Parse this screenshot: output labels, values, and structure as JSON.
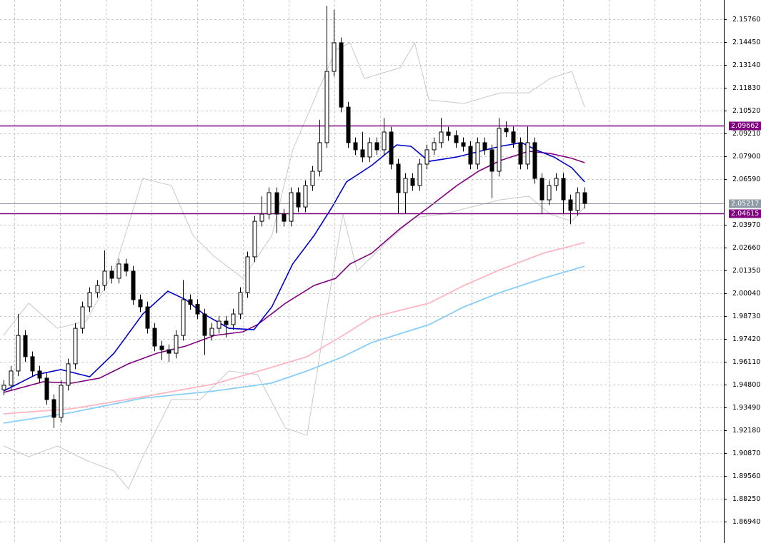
{
  "chart_data": {
    "type": "candlestick",
    "ylim": [
      1.85711,
      2.16865
    ],
    "yticks": [
      {
        "value": 2.1576,
        "label": "2.15760"
      },
      {
        "value": 2.1445,
        "label": "2.14450"
      },
      {
        "value": 2.1314,
        "label": "2.13140"
      },
      {
        "value": 2.1183,
        "label": "2.11830"
      },
      {
        "value": 2.1052,
        "label": "2.10520"
      },
      {
        "value": 2.0921,
        "label": "2.09210"
      },
      {
        "value": 2.079,
        "label": "2.07900"
      },
      {
        "value": 2.0659,
        "label": "2.06590"
      },
      {
        "value": 2.0397,
        "label": "2.03970"
      },
      {
        "value": 2.0266,
        "label": "2.02660"
      },
      {
        "value": 2.0135,
        "label": "2.01350"
      },
      {
        "value": 2.0004,
        "label": "2.00040"
      },
      {
        "value": 1.9873,
        "label": "1.98730"
      },
      {
        "value": 1.9742,
        "label": "1.97420"
      },
      {
        "value": 1.9611,
        "label": "1.96110"
      },
      {
        "value": 1.948,
        "label": "1.94800"
      },
      {
        "value": 1.9349,
        "label": "1.93490"
      },
      {
        "value": 1.9218,
        "label": "1.92180"
      },
      {
        "value": 1.9087,
        "label": "1.90870"
      },
      {
        "value": 1.8956,
        "label": "1.89560"
      },
      {
        "value": 1.8825,
        "label": "1.88250"
      },
      {
        "value": 1.8694,
        "label": "1.86940"
      }
    ],
    "grid": true,
    "up_color": "#ffffff",
    "down_color": "#000000",
    "open": [
      1.945,
      1.9476,
      1.9558,
      1.9762,
      1.964,
      1.9558,
      1.9517,
      1.9394,
      1.9292,
      1.9476,
      1.9599,
      1.9803,
      1.9926,
      2.0008,
      2.0049,
      2.0131,
      2.009,
      2.0172,
      2.0131,
      1.9967,
      1.9926,
      1.9803,
      1.9701,
      1.968,
      1.966,
      1.9762,
      1.9967,
      1.994,
      1.9885,
      1.9762,
      1.9803,
      1.9844,
      1.9824,
      1.9885,
      2.0008,
      2.0213,
      2.0417,
      2.0458,
      2.0581,
      2.0458,
      2.0417,
      2.0581,
      2.0499,
      2.0622,
      2.0704,
      2.0868,
      2.1277,
      2.1441,
      2.1072,
      2.0868,
      2.0827,
      2.0786,
      2.0868,
      2.0827,
      2.0929,
      2.0745,
      2.0581,
      2.0663,
      2.0622,
      2.0745,
      2.0827,
      2.0868,
      2.0929,
      2.0909,
      2.0868,
      2.0847,
      2.0745,
      2.0868,
      2.0827,
      2.0704,
      2.095,
      2.093,
      2.0868,
      2.0745,
      2.0868,
      2.0663,
      2.054,
      2.0622,
      2.0663,
      2.054,
      2.0479,
      2.0581
    ],
    "high": [
      1.9506,
      1.9588,
      1.9885,
      1.9792,
      1.967,
      1.9588,
      1.9547,
      1.9424,
      1.9506,
      1.9629,
      1.9833,
      1.9956,
      2.0038,
      2.0079,
      2.025,
      2.0161,
      2.0202,
      2.0202,
      2.0161,
      1.9997,
      1.9956,
      1.9833,
      1.9731,
      1.971,
      1.9792,
      2.008,
      1.9997,
      1.997,
      1.9915,
      1.9833,
      1.9874,
      1.9874,
      1.9915,
      2.0038,
      2.0243,
      2.0447,
      2.056,
      2.0611,
      2.0611,
      2.0488,
      2.0611,
      2.0611,
      2.0652,
      2.0734,
      2.1,
      2.1654,
      2.163,
      2.1471,
      2.1102,
      2.0898,
      2.093,
      2.0898,
      2.0898,
      2.101,
      2.0959,
      2.0775,
      2.0693,
      2.0693,
      2.0775,
      2.0857,
      2.0898,
      2.101,
      2.0959,
      2.0939,
      2.0898,
      2.0877,
      2.0898,
      2.0898,
      2.0857,
      2.101,
      2.099,
      2.096,
      2.0898,
      2.096,
      2.0898,
      2.0693,
      2.0652,
      2.0693,
      2.0693,
      2.057,
      2.0611,
      2.0611
    ],
    "low": [
      1.942,
      1.9446,
      1.9528,
      1.961,
      1.9528,
      1.9487,
      1.9364,
      1.923,
      1.9262,
      1.9446,
      1.9569,
      1.9773,
      1.9896,
      1.9978,
      2.0019,
      2.006,
      2.006,
      2.0101,
      1.9937,
      1.9896,
      1.9773,
      1.9671,
      1.962,
      1.961,
      1.963,
      1.9732,
      1.991,
      1.9855,
      1.965,
      1.9732,
      1.9773,
      1.975,
      1.9794,
      1.9855,
      1.9978,
      2.0183,
      2.0387,
      2.0428,
      2.035,
      2.0387,
      2.0387,
      2.0469,
      2.0469,
      2.0592,
      2.0674,
      2.0838,
      2.1247,
      2.1042,
      2.0838,
      2.0797,
      2.0756,
      2.0756,
      2.0797,
      2.0797,
      2.0715,
      2.046,
      2.046,
      2.0592,
      2.0592,
      2.0715,
      2.0797,
      2.0838,
      2.0879,
      2.0838,
      2.0817,
      2.0715,
      2.0715,
      2.0797,
      2.055,
      2.0674,
      2.09,
      2.0838,
      2.0715,
      2.0715,
      2.0633,
      2.046,
      2.051,
      2.0592,
      2.046,
      2.04,
      2.0449,
      2.049
    ],
    "close": [
      1.9476,
      1.9558,
      1.9762,
      1.964,
      1.9558,
      1.9517,
      1.9394,
      1.9292,
      1.9476,
      1.9599,
      1.9803,
      1.9926,
      2.0008,
      2.0049,
      2.0131,
      2.009,
      2.0172,
      2.0131,
      1.9967,
      1.9926,
      1.9803,
      1.9701,
      1.968,
      1.966,
      1.9762,
      1.9967,
      1.994,
      1.9885,
      1.9762,
      1.9803,
      1.9844,
      1.9824,
      1.9885,
      2.0008,
      2.0213,
      2.0417,
      2.0458,
      2.0581,
      2.0458,
      2.0417,
      2.0581,
      2.0499,
      2.0622,
      2.0704,
      2.0868,
      2.1277,
      2.1441,
      2.1072,
      2.0868,
      2.0827,
      2.0786,
      2.0868,
      2.0827,
      2.0929,
      2.0745,
      2.0581,
      2.0663,
      2.0622,
      2.0745,
      2.0827,
      2.0868,
      2.0929,
      2.0909,
      2.0868,
      2.0847,
      2.0745,
      2.0868,
      2.0827,
      2.0704,
      2.095,
      2.093,
      2.0868,
      2.0745,
      2.0868,
      2.0663,
      2.054,
      2.0622,
      2.0663,
      2.054,
      2.0479,
      2.0581,
      2.052
    ],
    "series": [
      {
        "color": "#c8c8c8",
        "x": [
          0,
          3.5,
          7.5,
          11.5,
          15.4,
          19.4,
          23.4,
          26.4,
          29.4,
          33.4,
          37.4,
          40.3,
          43.3,
          46.3,
          48.3,
          50.3,
          55.3,
          57.3,
          59.3,
          64.2,
          69.2,
          73.2,
          76.2,
          79.2,
          81
        ],
        "values": [
          1.9762,
          1.9947,
          1.9803,
          1.9844,
          2.0131,
          2.0663,
          2.0622,
          2.0336,
          2.0213,
          2.009,
          2.0336,
          2.0827,
          2.1113,
          2.14,
          2.1441,
          2.1236,
          2.1298,
          2.1441,
          2.1113,
          2.1093,
          2.1154,
          2.1154,
          2.1236,
          2.1277,
          2.1072
        ]
      },
      {
        "color": "#c8c8c8",
        "x": [
          0,
          3.5,
          7.5,
          11.5,
          15.4,
          17.4,
          19.4,
          23.4,
          27.4,
          31.4,
          35.4,
          39.3,
          42.3,
          45.3,
          47.3,
          49.3,
          53.3,
          57.3,
          61.3,
          65.2,
          69.2,
          73.2,
          76.2,
          79.2,
          81
        ],
        "values": [
          1.9128,
          1.9066,
          1.9128,
          1.9046,
          1.8984,
          1.8882,
          1.9066,
          1.9394,
          1.9394,
          1.9558,
          1.9537,
          1.923,
          1.9189,
          1.9967,
          2.0458,
          2.0131,
          2.0295,
          2.0438,
          2.0458,
          2.0499,
          2.054,
          2.0561,
          2.0458,
          2.0417,
          2.0499
        ]
      },
      {
        "color": "#87cefa",
        "x": [
          0,
          9.5,
          19.4,
          29.4,
          37.3,
          42.3,
          47.3,
          51.3,
          59.3,
          64.2,
          69.2,
          75.2,
          81
        ],
        "values": [
          1.9259,
          1.932,
          1.9402,
          1.9443,
          1.9488,
          1.9558,
          1.964,
          1.9721,
          1.9824,
          1.9926,
          2.0008,
          2.009,
          2.0159
        ]
      },
      {
        "color": "#ffb6c1",
        "x": [
          0,
          9.5,
          19.4,
          29.4,
          37.3,
          42.3,
          47.3,
          51.3,
          59.3,
          64.2,
          69.2,
          75.2,
          81
        ],
        "values": [
          1.9312,
          1.9341,
          1.941,
          1.9484,
          1.9578,
          1.964,
          1.9762,
          1.9865,
          1.9947,
          2.0049,
          2.0139,
          2.0233,
          2.0295
        ]
      },
      {
        "color": "#800080",
        "x": [
          0,
          5.5,
          9.5,
          13.4,
          17.4,
          21.4,
          25.4,
          29.4,
          33.4,
          35.4,
          39.3,
          43.3,
          46.3,
          48.3,
          51.3,
          55.3,
          59.3,
          63.2,
          66.2,
          69.2,
          73.2,
          76.2,
          79.2,
          81
        ],
        "values": [
          1.9435,
          1.9496,
          1.9488,
          1.9517,
          1.9599,
          1.966,
          1.9701,
          1.9762,
          1.9783,
          1.9824,
          1.9947,
          2.0049,
          2.009,
          2.0172,
          2.0233,
          2.0376,
          2.0499,
          2.0622,
          2.0704,
          2.0765,
          2.0819,
          2.0806,
          2.0778,
          2.0753
        ]
      },
      {
        "color": "#0000cd",
        "x": [
          0,
          4.5,
          8.0,
          12.0,
          15.4,
          19.4,
          22.9,
          25.4,
          27.9,
          31.4,
          34.9,
          37.4,
          40.3,
          43.3,
          45.8,
          47.8,
          51.3,
          54.8,
          56.8,
          59.3,
          63.2,
          67.2,
          69.2,
          72.2,
          74.2,
          76.7,
          79.2,
          81
        ],
        "values": [
          1.9443,
          1.9537,
          1.9566,
          1.9525,
          1.966,
          1.9885,
          2.0016,
          1.9967,
          1.9885,
          1.9803,
          1.9795,
          1.9926,
          2.0172,
          2.0336,
          2.0499,
          2.0643,
          2.0737,
          2.0855,
          2.0847,
          2.0761,
          2.0786,
          2.0827,
          2.0847,
          2.0868,
          2.0827,
          2.0786,
          2.0724,
          2.0643
        ]
      }
    ],
    "levels": [
      {
        "value": 2.09662,
        "color": "#800080"
      },
      {
        "value": 2.05217,
        "color": "#8d9aa6"
      },
      {
        "value": 2.04615,
        "color": "#800080"
      }
    ]
  }
}
